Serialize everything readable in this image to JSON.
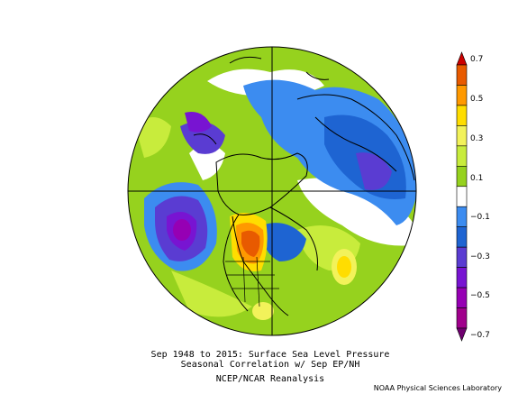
{
  "caption": {
    "line1": "Sep 1948 to 2015: Surface Sea Level Pressure",
    "line2": "Seasonal Correlation w/ Sep EP/NH",
    "line3": "NCEP/NCAR Reanalysis"
  },
  "credit": "NOAA Physical Sciences Laboratory",
  "colorbar": {
    "labels": [
      "0.7",
      "0.5",
      "0.3",
      "0.1",
      "−0.1",
      "−0.3",
      "−0.5",
      "−0.7"
    ],
    "bins": [
      {
        "range": "0.7+",
        "color": "#cc0000"
      },
      {
        "range": "0.6-0.7",
        "color": "#e85a00"
      },
      {
        "range": "0.5-0.6",
        "color": "#ff9900"
      },
      {
        "range": "0.4-0.5",
        "color": "#ffdd00"
      },
      {
        "range": "0.3-0.4",
        "color": "#f2f25a"
      },
      {
        "range": "0.2-0.3",
        "color": "#c8ec3c"
      },
      {
        "range": "0.1-0.2",
        "color": "#96d21e"
      },
      {
        "range": "-0.1-0.1",
        "color": "#ffffff"
      },
      {
        "range": "-0.2--0.1",
        "color": "#3c8cf0"
      },
      {
        "range": "-0.3--0.2",
        "color": "#1e64d2"
      },
      {
        "range": "-0.4--0.3",
        "color": "#5a3cd2"
      },
      {
        "range": "-0.5--0.4",
        "color": "#7814d2"
      },
      {
        "range": "-0.6--0.5",
        "color": "#9600b4"
      },
      {
        "range": "-0.7--0.6",
        "color": "#a0008c"
      },
      {
        "range": "-0.7-",
        "color": "#6e006e"
      }
    ]
  },
  "colors": {
    "land_outline": "#000000",
    "background": "#ffffff"
  }
}
